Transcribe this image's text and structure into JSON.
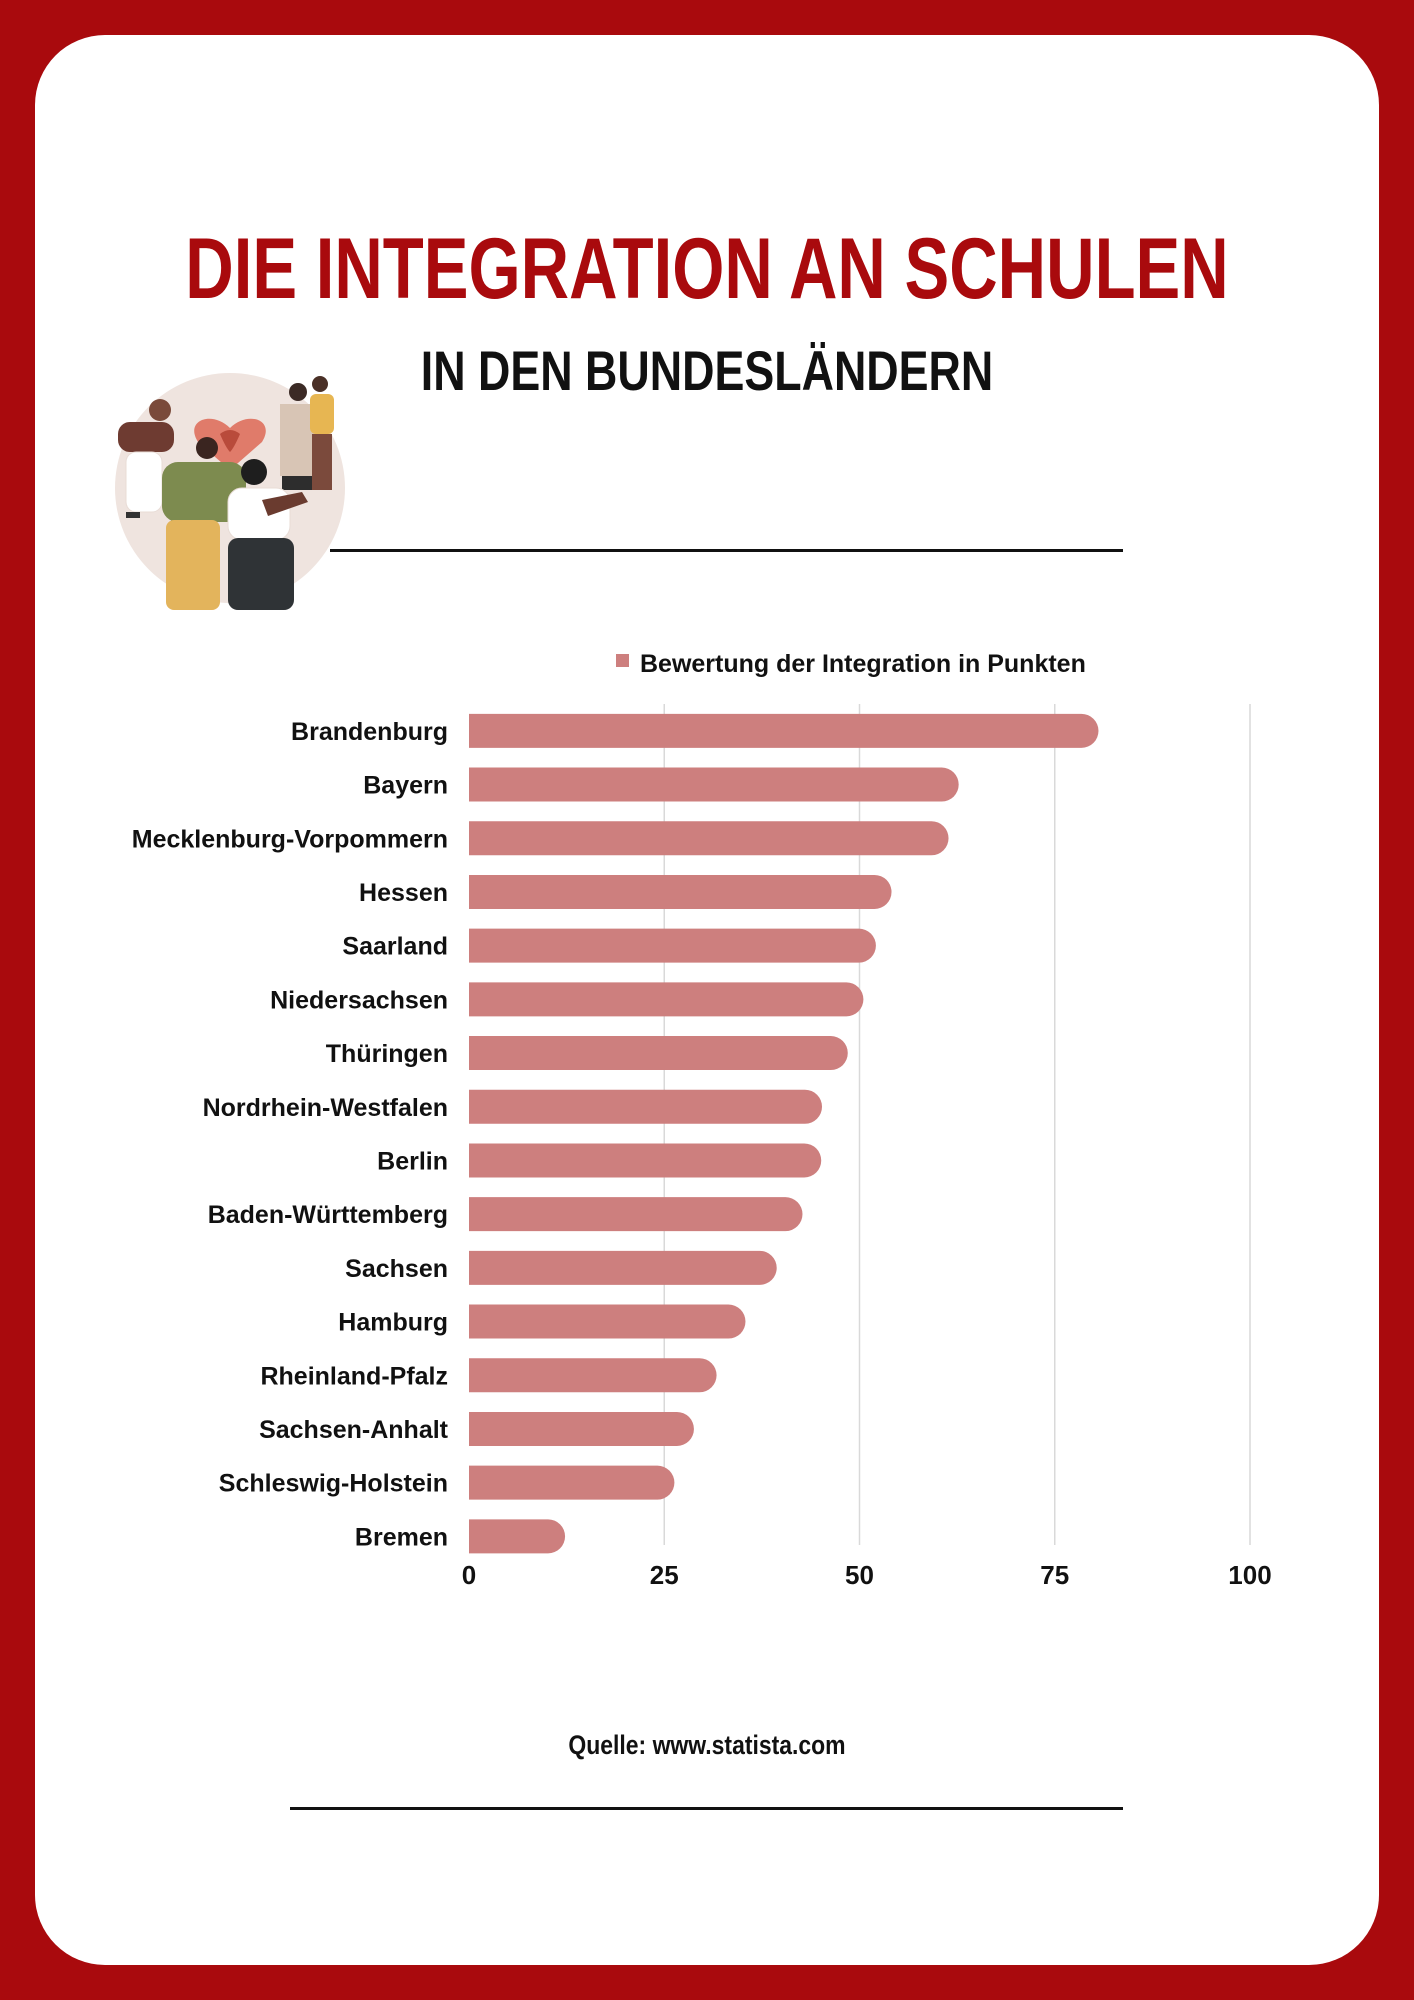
{
  "header": {
    "title": "DIE INTEGRATION AN SCHULEN",
    "subtitle": "IN DEN BUNDESLÄNDERN"
  },
  "footer": {
    "source": "Quelle: www.statista.com"
  },
  "colors": {
    "frame": "#a90a0d",
    "card": "#ffffff",
    "bar": "#cd7f7e",
    "text": "#111111",
    "grid": "#d9d9d9"
  },
  "illustration": {
    "icon": "people-community-illustration"
  },
  "chart_data": {
    "type": "bar",
    "orientation": "horizontal",
    "title": "",
    "xlabel": "",
    "ylabel": "",
    "categories": [
      "Brandenburg",
      "Bayern",
      "Mecklenburg-Vorpommern",
      "Hessen",
      "Saarland",
      "Niedersachsen",
      "Thüringen",
      "Nordrhein-Westfalen",
      "Berlin",
      "Baden-Württemberg",
      "Sachsen",
      "Hamburg",
      "Rheinland-Pfalz",
      "Sachsen-Anhalt",
      "Schleswig-Holstein",
      "Bremen"
    ],
    "series": [
      {
        "name": "Bewertung der Integration in Punkten",
        "values": [
          80.6,
          62.7,
          61.4,
          54.1,
          52.1,
          50.5,
          48.5,
          45.2,
          45.1,
          42.7,
          39.4,
          35.4,
          31.7,
          28.8,
          26.3,
          12.3
        ]
      }
    ],
    "xlim": [
      0,
      100
    ],
    "xticks": [
      "0",
      "25",
      "50",
      "75",
      "100"
    ],
    "grid": true,
    "legend_position": "top"
  }
}
